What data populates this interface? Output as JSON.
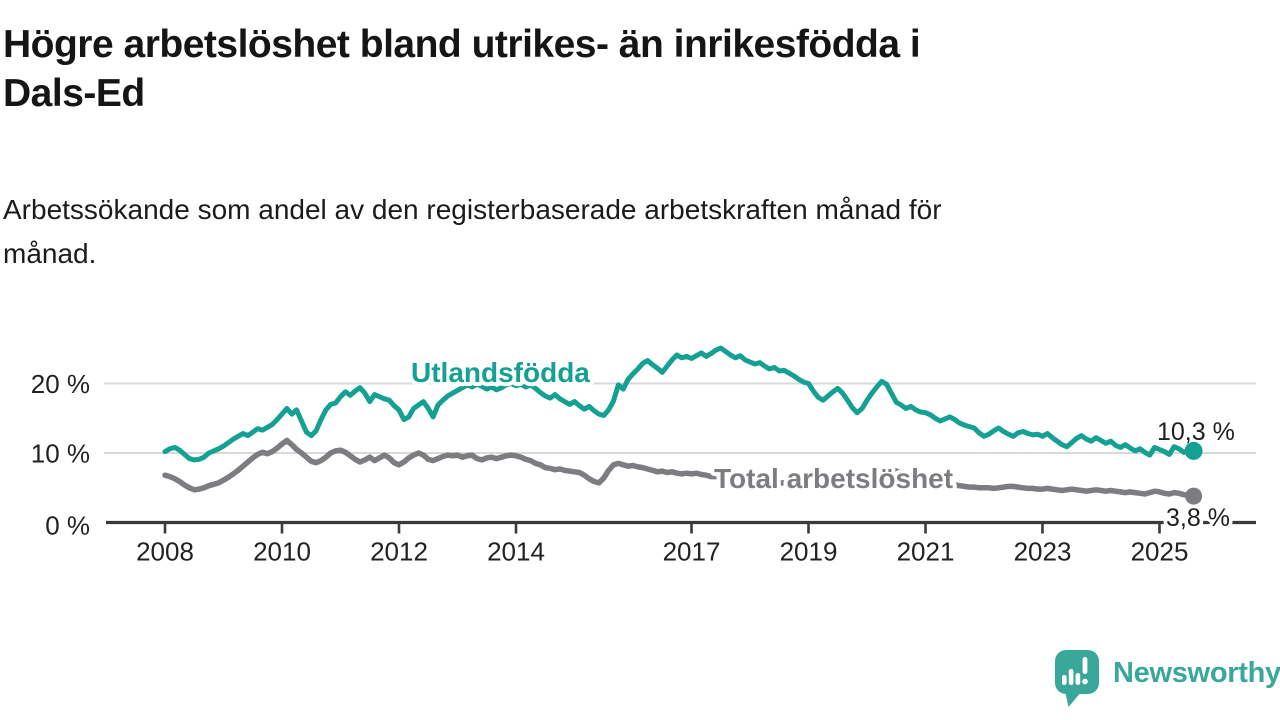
{
  "header": {
    "title_lines": [
      "Högre arbetslöshet bland utrikes- än inrikesfödda i",
      "Dals-Ed"
    ],
    "subtitle_lines": [
      "Arbetssökande som andel av den registerbaserade arbetskraften månad för",
      "månad."
    ]
  },
  "chart_data": {
    "type": "line",
    "title": "Högre arbetslöshet bland utrikes- än inrikesfödda i Dals-Ed",
    "subtitle": "Arbetssökande som andel av den registerbaserade arbetskraften månad för månad.",
    "unit": "%",
    "frequency": "monthly",
    "x_start": "2008-01",
    "x_end": "2025-08",
    "ylim": [
      0,
      26
    ],
    "grid": "horizontal",
    "legend_position": "inline-labels",
    "y_ticks": [
      {
        "value": 0,
        "label": "0 %"
      },
      {
        "value": 10,
        "label": "10 %"
      },
      {
        "value": 20,
        "label": "20 %"
      }
    ],
    "x_ticks": [
      {
        "value": 2008,
        "label": "2008"
      },
      {
        "value": 2010,
        "label": "2010"
      },
      {
        "value": 2012,
        "label": "2012"
      },
      {
        "value": 2014,
        "label": "2014"
      },
      {
        "value": 2017,
        "label": "2017"
      },
      {
        "value": 2019,
        "label": "2019"
      },
      {
        "value": 2021,
        "label": "2021"
      },
      {
        "value": 2023,
        "label": "2023"
      },
      {
        "value": 2025,
        "label": "2025"
      }
    ],
    "series": [
      {
        "name": "Utlandsfödda",
        "color": "#14a093",
        "end_label": "10,3 %",
        "end_value": 10.3,
        "values": [
          10.2,
          10.6,
          10.8,
          10.4,
          9.8,
          9.2,
          9.0,
          9.1,
          9.4,
          10.0,
          10.3,
          10.6,
          11.0,
          11.5,
          12.0,
          12.4,
          12.8,
          12.5,
          13.0,
          13.5,
          13.3,
          13.7,
          14.1,
          14.8,
          15.6,
          16.4,
          15.6,
          16.2,
          14.6,
          13.0,
          12.5,
          13.2,
          14.8,
          16.2,
          17.0,
          17.2,
          18.1,
          18.8,
          18.3,
          18.9,
          19.4,
          18.6,
          17.4,
          18.4,
          18.1,
          17.8,
          17.6,
          16.8,
          16.2,
          14.8,
          15.2,
          16.4,
          16.9,
          17.4,
          16.4,
          15.2,
          16.9,
          17.6,
          18.2,
          18.6,
          19.0,
          19.4,
          19.8,
          19.5,
          19.9,
          19.6,
          19.2,
          19.5,
          19.1,
          19.4,
          19.8,
          20.0,
          19.7,
          19.9,
          19.5,
          19.8,
          19.3,
          18.7,
          18.2,
          17.9,
          18.4,
          17.8,
          17.4,
          17.0,
          17.4,
          16.8,
          16.3,
          16.7,
          16.1,
          15.6,
          15.4,
          16.2,
          17.5,
          19.8,
          19.2,
          20.6,
          21.4,
          22.1,
          22.9,
          23.3,
          22.7,
          22.2,
          21.6,
          22.5,
          23.4,
          24.1,
          23.7,
          23.9,
          23.6,
          24.0,
          24.4,
          23.9,
          24.3,
          24.8,
          25.1,
          24.6,
          24.1,
          23.7,
          24.0,
          23.4,
          23.1,
          22.8,
          23.0,
          22.5,
          22.1,
          22.3,
          21.8,
          21.9,
          21.5,
          21.1,
          20.6,
          20.2,
          20.0,
          18.9,
          18.0,
          17.6,
          18.2,
          18.8,
          19.3,
          18.6,
          17.6,
          16.5,
          15.8,
          16.4,
          17.6,
          18.6,
          19.5,
          20.3,
          19.9,
          18.6,
          17.3,
          16.9,
          16.4,
          16.7,
          16.2,
          15.9,
          15.8,
          15.5,
          15.0,
          14.6,
          14.9,
          15.2,
          14.8,
          14.3,
          14.0,
          13.8,
          13.6,
          12.9,
          12.4,
          12.7,
          13.2,
          13.6,
          13.1,
          12.7,
          12.4,
          12.9,
          13.1,
          12.8,
          12.6,
          12.7,
          12.4,
          12.8,
          12.2,
          11.7,
          11.2,
          10.9,
          11.5,
          12.1,
          12.5,
          12.0,
          11.7,
          12.2,
          11.8,
          11.4,
          11.7,
          11.1,
          10.8,
          11.2,
          10.7,
          10.3,
          10.6,
          10.1,
          9.7,
          10.8,
          10.5,
          10.2,
          9.8,
          10.9,
          10.6,
          10.1,
          10.4,
          10.3
        ]
      },
      {
        "name": "Total arbetslöshet",
        "color": "#7d7d81",
        "end_label": "3,8 %",
        "end_value": 3.8,
        "values": [
          6.8,
          6.6,
          6.3,
          5.9,
          5.4,
          5.0,
          4.7,
          4.8,
          5.0,
          5.3,
          5.5,
          5.7,
          6.1,
          6.5,
          7.0,
          7.5,
          8.1,
          8.7,
          9.3,
          9.8,
          10.1,
          9.9,
          10.2,
          10.7,
          11.3,
          11.8,
          11.2,
          10.5,
          10.0,
          9.4,
          8.8,
          8.6,
          8.9,
          9.4,
          10.0,
          10.3,
          10.4,
          10.1,
          9.6,
          9.1,
          8.7,
          9.0,
          9.4,
          8.9,
          9.3,
          9.7,
          9.3,
          8.6,
          8.3,
          8.7,
          9.3,
          9.7,
          10.0,
          9.7,
          9.1,
          8.9,
          9.2,
          9.5,
          9.7,
          9.6,
          9.7,
          9.4,
          9.6,
          9.7,
          9.2,
          9.0,
          9.3,
          9.4,
          9.2,
          9.4,
          9.6,
          9.7,
          9.6,
          9.4,
          9.1,
          8.9,
          8.5,
          8.3,
          7.9,
          7.8,
          7.6,
          7.7,
          7.5,
          7.4,
          7.3,
          7.2,
          6.8,
          6.3,
          5.9,
          5.7,
          6.4,
          7.5,
          8.3,
          8.5,
          8.3,
          8.1,
          8.2,
          8.0,
          7.9,
          7.7,
          7.5,
          7.3,
          7.4,
          7.2,
          7.3,
          7.1,
          7.0,
          7.1,
          7.0,
          7.1,
          6.9,
          6.8,
          6.6,
          6.6,
          6.5,
          6.4,
          6.4,
          6.3,
          6.3,
          6.2,
          6.1,
          6.0,
          6.0,
          5.9,
          5.8,
          5.8,
          5.7,
          5.7,
          5.6,
          5.6,
          5.7,
          5.8,
          5.8,
          5.7,
          5.7,
          5.6,
          5.5,
          5.5,
          5.4,
          5.5,
          5.6,
          5.7,
          5.8,
          5.9,
          6.1,
          6.4,
          6.8,
          7.2,
          7.5,
          7.6,
          7.4,
          7.2,
          7.0,
          6.8,
          6.6,
          6.4,
          6.2,
          6.0,
          5.9,
          5.7,
          5.6,
          5.5,
          5.4,
          5.3,
          5.2,
          5.1,
          5.1,
          5.0,
          5.0,
          5.0,
          4.9,
          5.0,
          5.1,
          5.2,
          5.2,
          5.1,
          5.0,
          4.9,
          4.9,
          4.8,
          4.8,
          4.9,
          4.8,
          4.7,
          4.6,
          4.7,
          4.8,
          4.7,
          4.6,
          4.5,
          4.6,
          4.7,
          4.6,
          4.5,
          4.6,
          4.5,
          4.4,
          4.3,
          4.4,
          4.3,
          4.2,
          4.1,
          4.3,
          4.5,
          4.4,
          4.2,
          4.1,
          4.3,
          4.2,
          4.0,
          3.9,
          3.8
        ]
      }
    ]
  },
  "branding": {
    "logo_text": "Newsworthy",
    "logo_color": "#3aa79b",
    "icon": "speech-bubble-bar-chart-icon"
  }
}
